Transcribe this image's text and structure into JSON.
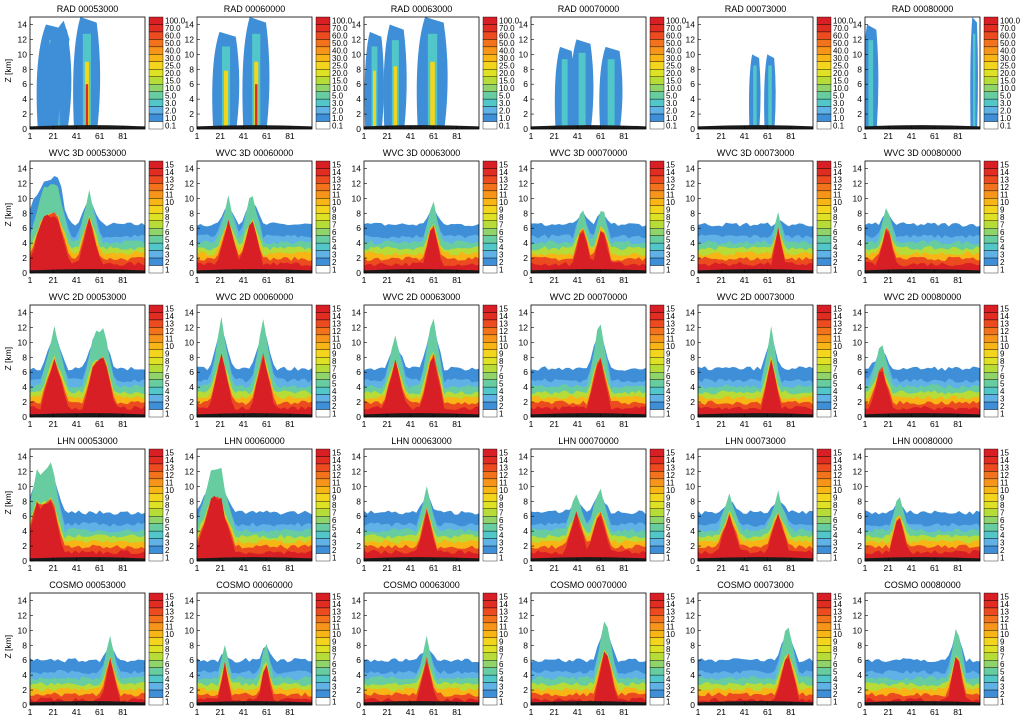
{
  "rows": [
    {
      "prefix": "RAD",
      "yticks": [
        "0",
        "2",
        "4",
        "6",
        "8",
        "10",
        "12",
        "14"
      ],
      "ylabel": "Z [km]",
      "cbar": [
        "100.0",
        "70.0",
        "60.0",
        "50.0",
        "40.0",
        "30.0",
        "25.0",
        "20.0",
        "15.0",
        "10.0",
        "5.0",
        "3.0",
        "2.0",
        "1.0",
        "0.1"
      ]
    },
    {
      "prefix": "WVC 3D",
      "yticks": [
        "0",
        "2",
        "4",
        "6",
        "8",
        "10",
        "12",
        "14"
      ],
      "ylabel": "Z [km]",
      "cbar": [
        "15",
        "14",
        "13",
        "12",
        "11",
        "10",
        "9",
        "8",
        "7",
        "6",
        "5",
        "4",
        "3",
        "2",
        "1"
      ]
    },
    {
      "prefix": "WVC 2D",
      "yticks": [
        "0",
        "2",
        "4",
        "6",
        "8",
        "10",
        "12",
        "14"
      ],
      "ylabel": "Z [km]",
      "cbar": [
        "15",
        "14",
        "13",
        "12",
        "11",
        "10",
        "9",
        "8",
        "7",
        "6",
        "5",
        "4",
        "3",
        "2",
        "1"
      ]
    },
    {
      "prefix": "LHN",
      "yticks": [
        "0",
        "2",
        "4",
        "6",
        "8",
        "10",
        "12",
        "14"
      ],
      "ylabel": "Z [km]",
      "cbar": [
        "15",
        "14",
        "13",
        "12",
        "11",
        "10",
        "9",
        "8",
        "7",
        "6",
        "5",
        "4",
        "3",
        "2",
        "1"
      ]
    },
    {
      "prefix": "COSMO",
      "yticks": [
        "0",
        "2",
        "4",
        "6",
        "8",
        "10",
        "12",
        "14"
      ],
      "ylabel": "Z [km]",
      "cbar": [
        "15",
        "14",
        "13",
        "12",
        "11",
        "10",
        "9",
        "8",
        "7",
        "6",
        "5",
        "4",
        "3",
        "2",
        "1"
      ]
    }
  ],
  "times": [
    "00053000",
    "00060000",
    "00063000",
    "00070000",
    "00073000",
    "00080000"
  ],
  "xticks": [
    "1",
    "21",
    "41",
    "61",
    "81"
  ],
  "colors": {
    "scale": [
      "#ffffff",
      "#3f8fd8",
      "#5fb1e6",
      "#52c7c9",
      "#67cc9f",
      "#8fd36a",
      "#b7dc38",
      "#dfe224",
      "#f2d51c",
      "#f7b516",
      "#f7951a",
      "#f2731c",
      "#ec4b20",
      "#e12c22",
      "#d81f25"
    ]
  },
  "chart_data": {
    "type": "heatmap",
    "panels_per_row": 6,
    "rows": 5,
    "x_range": [
      1,
      100
    ],
    "y_range_km": [
      0,
      15
    ],
    "notes": "5x6 grid of vertical cross-section contour plots (rows: RAD, WVC 3D, WVC 2D, LHN, COSMO; columns: six times)"
  }
}
